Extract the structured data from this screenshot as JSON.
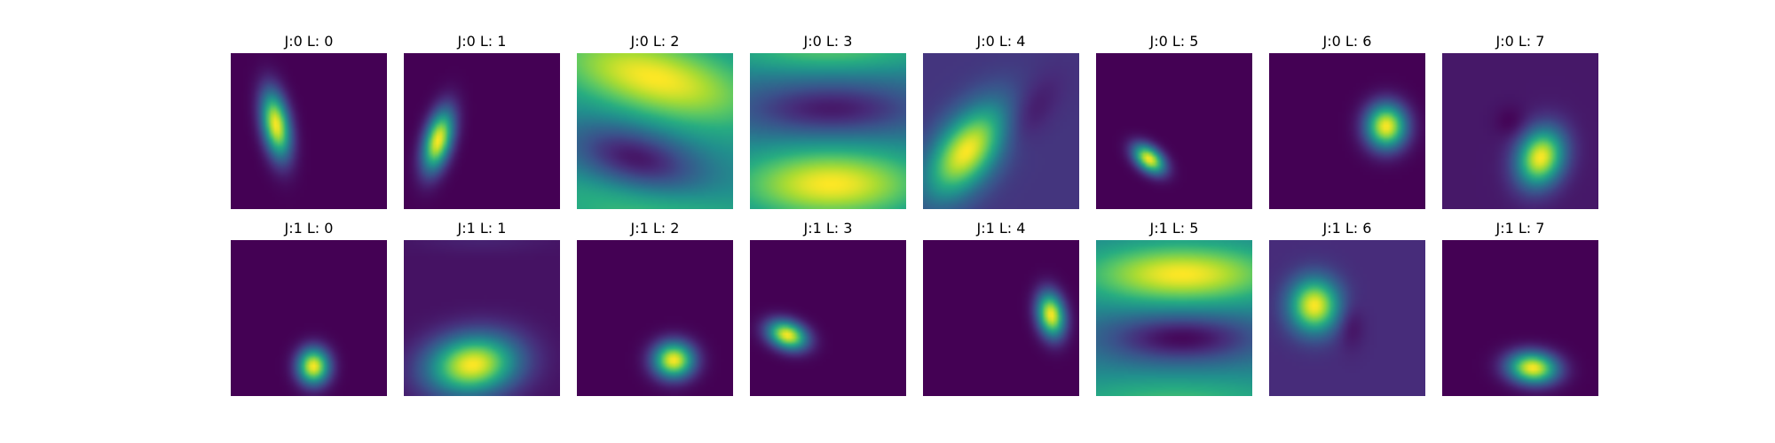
{
  "chart_data": {
    "type": "heatmap",
    "colormap": "viridis",
    "value_range": [
      0,
      1
    ],
    "grid": {
      "rows": 2,
      "cols": 8
    },
    "panels": [
      {
        "title": "J:0 L: 0",
        "blobs": [
          {
            "cx": 0.29,
            "cy": 0.46,
            "sx": 0.06,
            "sy": 0.15,
            "rot": 10,
            "amp": 1.0
          }
        ]
      },
      {
        "title": "J:0 L: 1",
        "blobs": [
          {
            "cx": 0.22,
            "cy": 0.56,
            "sx": 0.06,
            "sy": 0.14,
            "rot": -15,
            "amp": 1.0
          }
        ]
      },
      {
        "title": "J:0 L: 2",
        "base": 0.5,
        "blobs": [
          {
            "cx": 0.5,
            "cy": 0.16,
            "sx": 0.45,
            "sy": 0.17,
            "rot": -15,
            "amp": 0.5
          },
          {
            "cx": 0.38,
            "cy": 0.68,
            "sx": 0.3,
            "sy": 0.14,
            "rot": -15,
            "amp": -0.45
          },
          {
            "cx": 0.5,
            "cy": 1.02,
            "sx": 0.55,
            "sy": 0.14,
            "rot": -10,
            "amp": 0.2
          }
        ]
      },
      {
        "title": "J:0 L: 3",
        "base": 0.42,
        "blobs": [
          {
            "cx": 0.52,
            "cy": 0.84,
            "sx": 0.42,
            "sy": 0.16,
            "rot": 0,
            "amp": 0.58
          },
          {
            "cx": 0.52,
            "cy": 0.36,
            "sx": 0.4,
            "sy": 0.12,
            "rot": 0,
            "amp": -0.35
          },
          {
            "cx": 0.5,
            "cy": -0.02,
            "sx": 0.5,
            "sy": 0.1,
            "rot": 0,
            "amp": 0.3
          }
        ]
      },
      {
        "title": "J:0 L: 4",
        "base": 0.16,
        "blobs": [
          {
            "cx": 0.28,
            "cy": 0.63,
            "sx": 0.13,
            "sy": 0.24,
            "rot": -38,
            "amp": 0.84
          },
          {
            "cx": 0.66,
            "cy": 0.4,
            "sx": 0.09,
            "sy": 0.2,
            "rot": -38,
            "amp": -0.12
          }
        ]
      },
      {
        "title": "J:0 L: 5",
        "blobs": [
          {
            "cx": 0.34,
            "cy": 0.68,
            "sx": 0.08,
            "sy": 0.05,
            "rot": -40,
            "amp": 1.0
          }
        ]
      },
      {
        "title": "J:0 L: 6",
        "blobs": [
          {
            "cx": 0.75,
            "cy": 0.47,
            "sx": 0.09,
            "sy": 0.1,
            "rot": 0,
            "amp": 1.0
          }
        ]
      },
      {
        "title": "J:0 L: 7",
        "base": 0.07,
        "blobs": [
          {
            "cx": 0.63,
            "cy": 0.67,
            "sx": 0.1,
            "sy": 0.13,
            "rot": -20,
            "amp": 0.93
          },
          {
            "cx": 0.44,
            "cy": 0.44,
            "sx": 0.07,
            "sy": 0.07,
            "rot": 0,
            "amp": -0.07
          }
        ]
      },
      {
        "title": "J:1 L: 0",
        "blobs": [
          {
            "cx": 0.53,
            "cy": 0.81,
            "sx": 0.07,
            "sy": 0.08,
            "rot": 0,
            "amp": 1.0
          }
        ]
      },
      {
        "title": "J:1 L: 1",
        "base": 0.05,
        "blobs": [
          {
            "cx": 0.44,
            "cy": 0.8,
            "sx": 0.2,
            "sy": 0.13,
            "rot": 8,
            "amp": 0.95
          },
          {
            "cx": 0.5,
            "cy": 0.0,
            "sx": 0.3,
            "sy": 0.06,
            "rot": 0,
            "amp": 0.05
          }
        ]
      },
      {
        "title": "J:1 L: 2",
        "blobs": [
          {
            "cx": 0.62,
            "cy": 0.77,
            "sx": 0.09,
            "sy": 0.08,
            "rot": 0,
            "amp": 1.0
          }
        ]
      },
      {
        "title": "J:1 L: 3",
        "blobs": [
          {
            "cx": 0.24,
            "cy": 0.61,
            "sx": 0.09,
            "sy": 0.06,
            "rot": -20,
            "amp": 1.0
          }
        ]
      },
      {
        "title": "J:1 L: 4",
        "blobs": [
          {
            "cx": 0.82,
            "cy": 0.48,
            "sx": 0.06,
            "sy": 0.1,
            "rot": 10,
            "amp": 1.0
          }
        ]
      },
      {
        "title": "J:1 L: 5",
        "base": 0.45,
        "blobs": [
          {
            "cx": 0.55,
            "cy": 0.22,
            "sx": 0.42,
            "sy": 0.13,
            "rot": 0,
            "amp": 0.55
          },
          {
            "cx": 0.55,
            "cy": 0.63,
            "sx": 0.35,
            "sy": 0.11,
            "rot": 0,
            "amp": -0.43
          },
          {
            "cx": 0.5,
            "cy": 1.05,
            "sx": 0.55,
            "sy": 0.12,
            "rot": 0,
            "amp": 0.25
          }
        ]
      },
      {
        "title": "J:1 L: 6",
        "base": 0.13,
        "blobs": [
          {
            "cx": 0.29,
            "cy": 0.42,
            "sx": 0.11,
            "sy": 0.12,
            "rot": 0,
            "amp": 0.87
          },
          {
            "cx": 0.52,
            "cy": 0.55,
            "sx": 0.06,
            "sy": 0.1,
            "rot": 0,
            "amp": -0.1
          }
        ]
      },
      {
        "title": "J:1 L: 7",
        "blobs": [
          {
            "cx": 0.58,
            "cy": 0.82,
            "sx": 0.11,
            "sy": 0.07,
            "rot": -5,
            "amp": 1.0
          }
        ]
      }
    ]
  }
}
